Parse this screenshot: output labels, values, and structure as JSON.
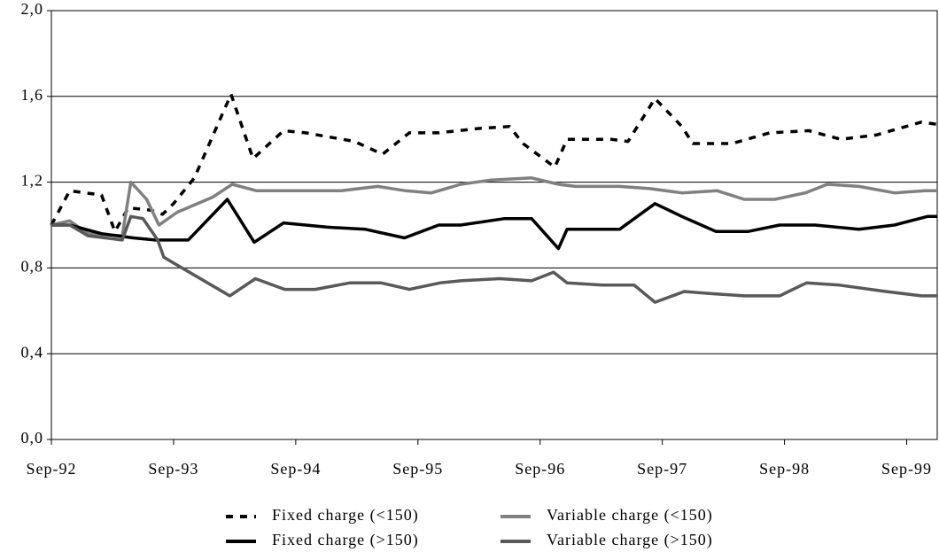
{
  "chart_data": {
    "type": "line",
    "xlim": [
      1992.75,
      2000.0
    ],
    "xticks": [
      {
        "value": 1992.75,
        "label": "Sep-92"
      },
      {
        "value": 1993.75,
        "label": "Sep-93"
      },
      {
        "value": 1994.75,
        "label": "Sep-94"
      },
      {
        "value": 1995.75,
        "label": "Sep-95"
      },
      {
        "value": 1996.75,
        "label": "Sep-96"
      },
      {
        "value": 1997.75,
        "label": "Sep-97"
      },
      {
        "value": 1998.75,
        "label": "Sep-98"
      },
      {
        "value": 1999.75,
        "label": "Sep-99"
      }
    ],
    "ylim": [
      0,
      2
    ],
    "yticks": [
      {
        "value": 0,
        "label": "0,0"
      },
      {
        "value": 0.4,
        "label": "0,4"
      },
      {
        "value": 0.8,
        "label": "0,8"
      },
      {
        "value": 1.2,
        "label": "1,2"
      },
      {
        "value": 1.6,
        "label": "1,6"
      },
      {
        "value": 2,
        "label": "2,0"
      }
    ],
    "grid": true,
    "legend": "bottom",
    "series": [
      {
        "name": "Fixed charge (<150)",
        "color": "#000000",
        "dashed": true,
        "x": [
          1992.75,
          1992.9,
          1993.16,
          1993.27,
          1993.38,
          1993.56,
          1993.66,
          1993.75,
          1993.92,
          1994.22,
          1994.4,
          1994.65,
          1994.83,
          1995.23,
          1995.46,
          1995.68,
          1995.92,
          1996.24,
          1996.5,
          1996.61,
          1996.87,
          1996.97,
          1997.33,
          1997.47,
          1997.69,
          1997.91,
          1998.0,
          1998.32,
          1998.63,
          1998.95,
          1999.21,
          1999.5,
          1999.87,
          2000.0
        ],
        "values": [
          1.0,
          1.16,
          1.14,
          0.97,
          1.08,
          1.07,
          1.05,
          1.1,
          1.22,
          1.61,
          1.31,
          1.44,
          1.43,
          1.39,
          1.33,
          1.43,
          1.43,
          1.45,
          1.46,
          1.38,
          1.27,
          1.4,
          1.4,
          1.39,
          1.59,
          1.46,
          1.38,
          1.38,
          1.43,
          1.44,
          1.4,
          1.42,
          1.48,
          1.47
        ]
      },
      {
        "name": "Variable charge (<150)",
        "color": "#808080",
        "dashed": false,
        "x": [
          1992.75,
          1992.9,
          1993.05,
          1993.33,
          1993.4,
          1993.53,
          1993.63,
          1993.78,
          1994.07,
          1994.23,
          1994.43,
          1994.74,
          1995.12,
          1995.42,
          1995.65,
          1995.86,
          1996.1,
          1996.35,
          1996.68,
          1996.9,
          1997.04,
          1997.4,
          1997.65,
          1997.91,
          1998.2,
          1998.42,
          1998.67,
          1998.92,
          1999.1,
          1999.36,
          1999.65,
          1999.9,
          2000.0
        ],
        "values": [
          1.0,
          1.02,
          0.96,
          0.95,
          1.2,
          1.12,
          1.0,
          1.06,
          1.13,
          1.19,
          1.16,
          1.16,
          1.16,
          1.18,
          1.16,
          1.15,
          1.19,
          1.21,
          1.22,
          1.19,
          1.18,
          1.18,
          1.17,
          1.15,
          1.16,
          1.12,
          1.12,
          1.15,
          1.19,
          1.18,
          1.15,
          1.16,
          1.16
        ]
      },
      {
        "name": "Fixed charge (>150)",
        "color": "#000000",
        "dashed": false,
        "x": [
          1992.75,
          1992.9,
          1993.16,
          1993.42,
          1993.6,
          1993.75,
          1993.87,
          1994.19,
          1994.41,
          1994.65,
          1995.01,
          1995.32,
          1995.64,
          1995.92,
          1996.1,
          1996.46,
          1996.68,
          1996.9,
          1996.97,
          1997.4,
          1997.69,
          1997.91,
          1998.19,
          1998.45,
          1998.71,
          1999.0,
          1999.36,
          1999.65,
          1999.92,
          2000.0
        ],
        "values": [
          1.0,
          1.0,
          0.96,
          0.94,
          0.93,
          0.93,
          0.93,
          1.12,
          0.92,
          1.01,
          0.99,
          0.98,
          0.94,
          1.0,
          1.0,
          1.03,
          1.03,
          0.89,
          0.98,
          0.98,
          1.1,
          1.04,
          0.97,
          0.97,
          1.0,
          1.0,
          0.98,
          1.0,
          1.04,
          1.04
        ]
      },
      {
        "name": "Variable charge (>150)",
        "color": "#595959",
        "dashed": false,
        "x": [
          1992.75,
          1992.9,
          1993.05,
          1993.33,
          1993.4,
          1993.5,
          1993.62,
          1993.67,
          1993.76,
          1994.21,
          1994.42,
          1994.66,
          1994.91,
          1995.19,
          1995.45,
          1995.68,
          1995.93,
          1996.1,
          1996.42,
          1996.68,
          1996.86,
          1996.97,
          1997.26,
          1997.52,
          1997.69,
          1997.93,
          1998.15,
          1998.42,
          1998.71,
          1998.93,
          1999.2,
          1999.58,
          1999.87,
          2000.0
        ],
        "values": [
          1.0,
          1.0,
          0.95,
          0.93,
          1.04,
          1.03,
          0.93,
          0.85,
          0.82,
          0.67,
          0.75,
          0.7,
          0.7,
          0.73,
          0.73,
          0.7,
          0.73,
          0.74,
          0.75,
          0.74,
          0.78,
          0.73,
          0.72,
          0.72,
          0.64,
          0.69,
          0.68,
          0.67,
          0.67,
          0.73,
          0.72,
          0.69,
          0.67,
          0.67
        ]
      }
    ]
  }
}
